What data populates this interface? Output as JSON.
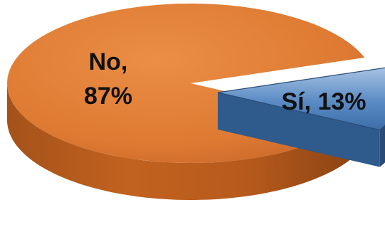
{
  "chart_data": {
    "type": "pie",
    "title": "",
    "categories": [
      "No",
      "Sí"
    ],
    "values": [
      87,
      13
    ],
    "unit": "%",
    "labels": [
      {
        "line1": "No,",
        "line2": "87%"
      },
      {
        "line1": "Sí, 13%"
      }
    ],
    "exploded": [
      false,
      true
    ],
    "colors": {
      "No": "#D9772F",
      "Sí": "#4F81BD"
    },
    "legend": "none",
    "style": "3d"
  }
}
